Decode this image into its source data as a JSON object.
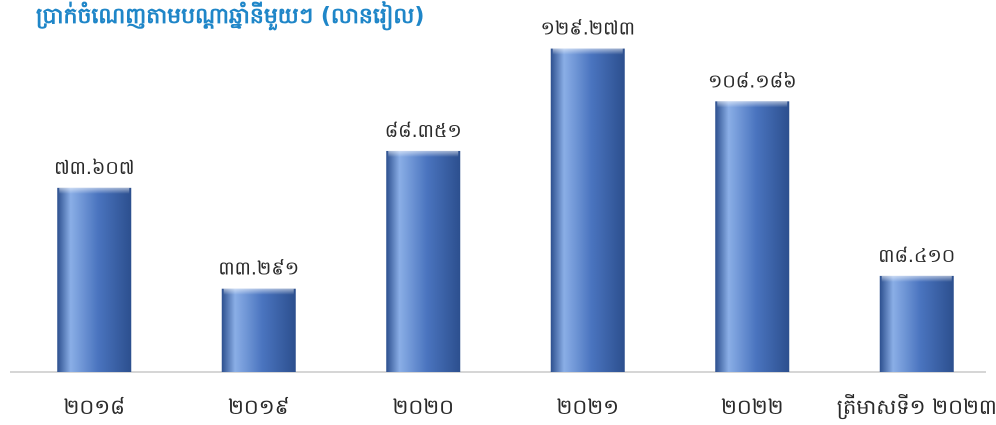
{
  "chart_data": {
    "type": "bar",
    "title": "ប្រាក់ចំណេញតាមបណ្តាឆ្នាំនីមួយៗ (លានរៀល)",
    "xlabel": "",
    "ylabel": "",
    "categories": [
      "២០១៨",
      "២០១៩",
      "២០២០",
      "២០២១",
      "២០២២",
      "ត្រីមាសទី១ ២០២៣"
    ],
    "values": [
      73.607,
      33.291,
      88.351,
      129.273,
      108.186,
      38.41
    ],
    "value_labels": [
      "៧៣.៦០៧",
      "៣៣.២៩១",
      "៨៨.៣៥១",
      "១២៩.២៧៣",
      "១០៨.១៨៦",
      "៣៨.៤១០"
    ],
    "ylim": [
      0,
      140
    ],
    "grid": false,
    "legend": "none",
    "colors": {
      "bar": "#4a74bf",
      "bar_light": "#8aaee6",
      "bar_dark": "#2c4f8e",
      "title": "#1f86c8",
      "axis": "#c8c8c8"
    }
  }
}
